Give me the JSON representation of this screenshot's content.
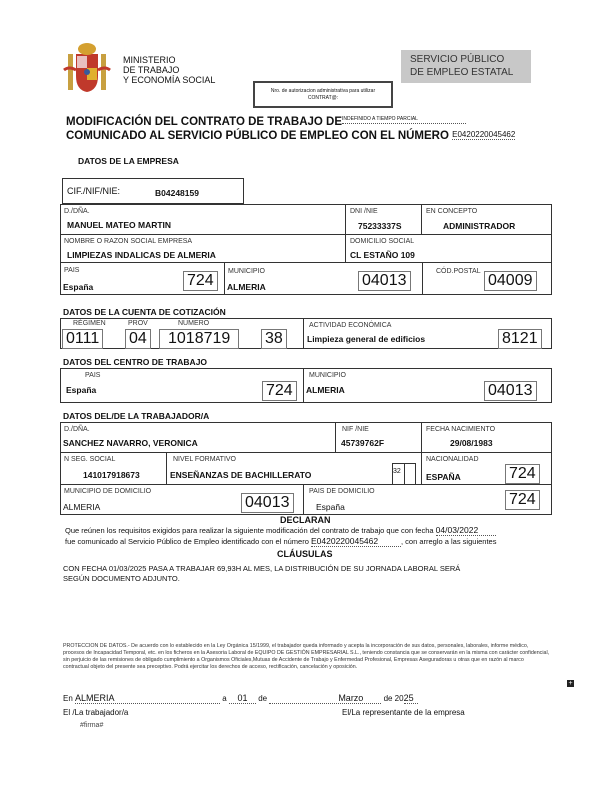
{
  "header": {
    "ministry": [
      "MINISTERIO",
      "DE TRABAJO",
      "Y ECONOMÍA SOCIAL"
    ],
    "authorization_box": [
      "Nro. de autorizacion administrativa para utilizar",
      "CONTRAT@:"
    ],
    "sepe": [
      "SERVICIO PÚBLICO",
      "DE EMPLEO ESTATAL"
    ]
  },
  "title": {
    "line1": "MODIFICACIÓN DEL CONTRATO DE TRABAJO DE",
    "contract_type": "INDEFINIDO A TIEMPO PARCIAL",
    "line2": "COMUNICADO AL SERVICIO PÚBLICO DE EMPLEO CON EL NÚMERO",
    "number": "E0420220045462"
  },
  "empresa": {
    "heading": "DATOS DE LA EMPRESA",
    "cif_label": "CIF./NIF/NIE:",
    "cif": "B04248159",
    "name_label": "D./DÑA.",
    "name": "MANUEL MATEO MARTIN",
    "dni_label": "DNI /NIE",
    "dni": "75233337S",
    "concepto_label": "EN CONCEPTO",
    "concepto": "ADMINISTRADOR",
    "razon_label": "NOMBRE O RAZON SOCIAL EMPRESA",
    "razon": "LIMPIEZAS INDALICAS DE ALMERIA",
    "domicilio_label": "DOMICILIO SOCIAL",
    "domicilio": "CL ESTAÑO 109",
    "pais_label": "PAIS",
    "pais": "España",
    "pais_code": "724",
    "municipio_label": "MUNICIPIO",
    "municipio": "ALMERIA",
    "municipio_code": "04013",
    "cp_label": "CÓD.POSTAL",
    "cp": "04009"
  },
  "cotizacion": {
    "heading": "DATOS DE LA CUENTA DE COTIZACIÓN",
    "regimen_label": "RÉGIMEN",
    "regimen": "0111",
    "prov_label": "PROV",
    "prov": "04",
    "numero_label": "NUMERO",
    "numero": "1018719",
    "dc": "38",
    "actividad_label": "ACTIVIDAD ECONÓMICA",
    "actividad": "Limpieza general de edificios",
    "actividad_code": "8121"
  },
  "centro": {
    "heading": "DATOS DEL CENTRO DE TRABAJO",
    "pais_label": "PAIS",
    "pais": "España",
    "pais_code": "724",
    "municipio_label": "MUNICIPIO",
    "municipio": "ALMERIA",
    "municipio_code": "04013"
  },
  "trabajador": {
    "heading": "DATOS DEL/DE LA TRABAJADOR/A",
    "name_label": "D./DÑA.",
    "name": "SANCHEZ NAVARRO, VERONICA",
    "nif_label": "NIF /NIE",
    "nif": "45739762F",
    "nac_label": "FECHA NACIMIENTO",
    "nac": "29/08/1983",
    "nss_label": "N SEG. SOCIAL",
    "nss": "141017918673",
    "nivel_label": "NIVEL FORMATIVO",
    "nivel": "ENSEÑANZAS DE BACHILLERATO",
    "nivel_code": "32",
    "nacionalidad_label": "NACIONALIDAD",
    "nacionalidad": "ESPAÑA",
    "nacionalidad_code": "724",
    "mun_label": "MUNICIPIO DE DOMICILIO",
    "mun": "ALMERIA",
    "mun_code": "04013",
    "paisdom_label": "PAIS DE DOMICILIO",
    "paisdom": "España",
    "paisdom_code": "724"
  },
  "declaran": {
    "heading": "DECLARAN",
    "line1": "Que reúnen los requisitos exigidos para realizar la siguiente modificación del contrato de trabajo que con fecha",
    "fecha": "04/03/2022",
    "line2a": "fue comunicado al Servicio Público de Empleo identificado con el número",
    "numero": "E0420220045462",
    "line2b": ", con arreglo a las siguientes",
    "clausulas_heading": "CLÁUSULAS",
    "clausula1": "CON FECHA 01/03/2025 PASA A TRABAJAR 69,93H AL MES, LA DISTRIBUCIÓN DE SU JORNADA LABORAL SERÁ",
    "clausula2": "SEGÚN DOCUMENTO ADJUNTO."
  },
  "proteccion": "PROTECCION DE DATOS.- De acuerdo con lo establecido en la Ley Orgánica 15/1999, el trabajador queda informado y acepta la incorporación de sus datos, personales, laborales, informe médico, procesos de Incapacidad Temporal, etc. en los ficheros en la Asesoria Laboral de EQUIPO DE GESTIÓN EMPRESARIAL S.L., teniendo constancia que se conservarán en la misma con carácter confidencial, sin perjuicio de las remisiones de obligado cumplimiento a Organismos Oficiales,Mutuas de Accidente de Trabajo y Enfermedad Profesional, Empresas Aseguradoras u otras que en razón al marco contractual objeto del presente sea preceptivo. Podrá ejercitar los derechos de acceso, rectificación, cancelación y oposición.",
  "firma": {
    "en": "En",
    "lugar": "ALMERIA",
    "a": "a",
    "dia": "01",
    "de": "de",
    "mes": "Marzo",
    "de20": "de 20",
    "anio": "25",
    "trabajador": "El /La trabajador/a",
    "representante": "El/La representante de la empresa",
    "firma_tag": "#firma#"
  }
}
